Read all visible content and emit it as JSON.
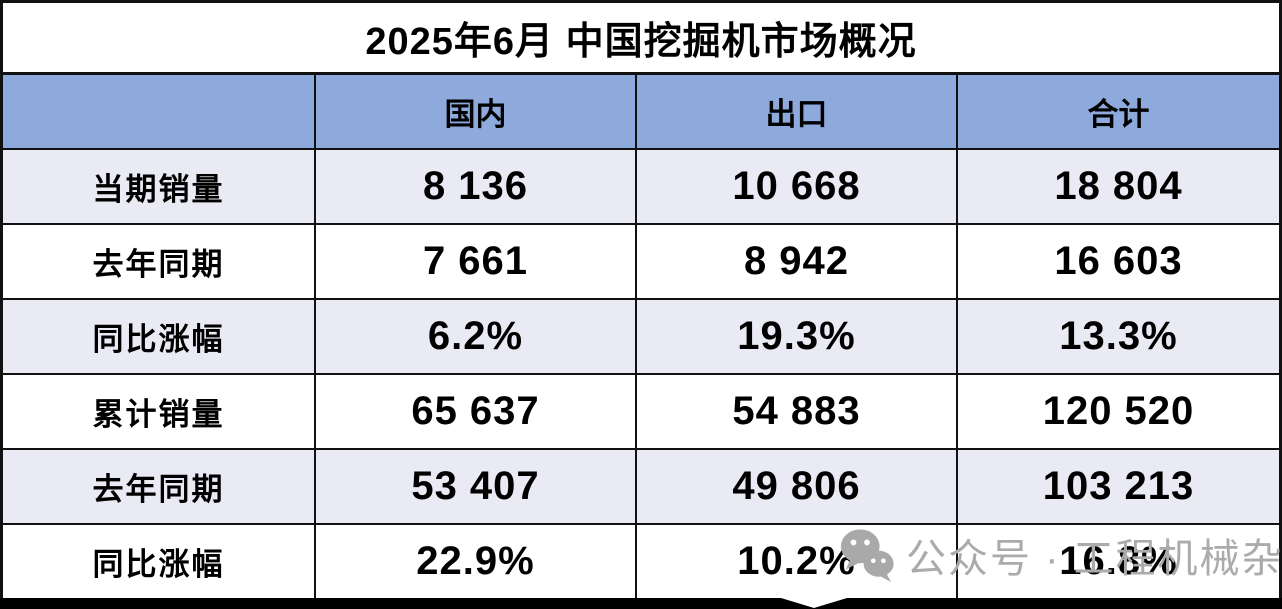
{
  "chart_data": {
    "type": "table",
    "title": "2025年6月 中国挖掘机市场概况",
    "columns": [
      "",
      "国内",
      "出口",
      "合计"
    ],
    "rows": [
      [
        "当期销量",
        "8 136",
        "10 668",
        "18 804"
      ],
      [
        "去年同期",
        "7 661",
        "8 942",
        "16 603"
      ],
      [
        "同比涨幅",
        "6.2%",
        "19.3%",
        "13.3%"
      ],
      [
        "累计销量",
        "65 637",
        "54 883",
        "120 520"
      ],
      [
        "去年同期",
        "53 407",
        "49 806",
        "103 213"
      ],
      [
        "同比涨幅",
        "22.9%",
        "10.2%",
        "16.8%"
      ]
    ],
    "layout": {
      "banded_rows": "odd rows shaded",
      "header_fill": "blue"
    }
  },
  "watermark": {
    "icon": "wechat-icon",
    "text": "公众号 · 工程机械杂志"
  },
  "colors": {
    "header_bg": "#8EA9DB",
    "band_bg": "#E9EAF3",
    "border": "#111111",
    "title_text": "#000000",
    "watermark_gray": "#ABABAB"
  }
}
